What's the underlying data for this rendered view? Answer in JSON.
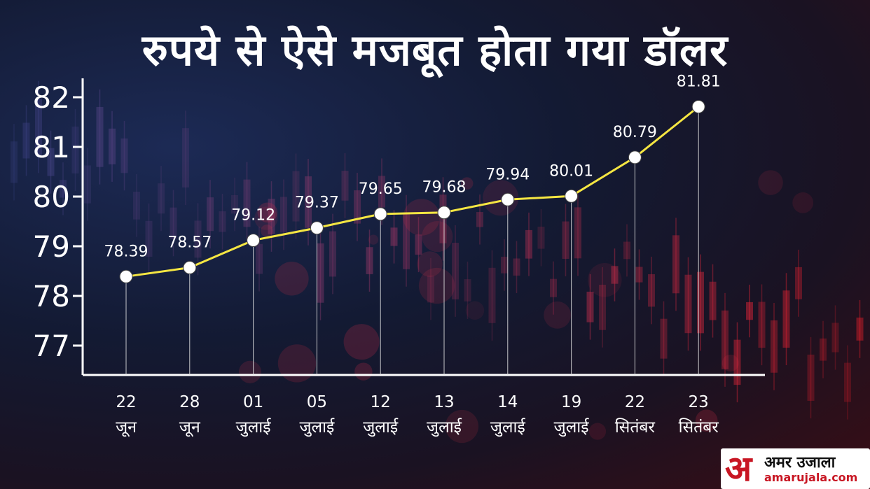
{
  "title": "रुपये से ऐसे मजबूत होता गया डॉलर",
  "logo": {
    "mark": "अ",
    "name": "अमर उजाला",
    "domain": "amarujala.com"
  },
  "colors": {
    "line": "#f5e642",
    "axis": "#ffffff",
    "text": "#ffffff",
    "brand": "#c81623"
  },
  "chart_data": {
    "type": "line",
    "title": "रुपये से ऐसे मजबूत होता गया डॉलर",
    "categories": [
      [
        "22",
        "जून"
      ],
      [
        "28",
        "जून"
      ],
      [
        "01",
        "जुलाई"
      ],
      [
        "05",
        "जुलाई"
      ],
      [
        "12",
        "जुलाई"
      ],
      [
        "13",
        "जुलाई"
      ],
      [
        "14",
        "जुलाई"
      ],
      [
        "19",
        "जुलाई"
      ],
      [
        "22",
        "सितंबर"
      ],
      [
        "23",
        "सितंबर"
      ]
    ],
    "values": [
      78.39,
      78.57,
      79.12,
      79.37,
      79.65,
      79.68,
      79.94,
      80.01,
      80.79,
      81.81
    ],
    "yticks": [
      77,
      78,
      79,
      80,
      81,
      82
    ],
    "ylim": [
      76.35,
      82.6
    ],
    "grid": false,
    "xlabel": "",
    "ylabel": ""
  }
}
